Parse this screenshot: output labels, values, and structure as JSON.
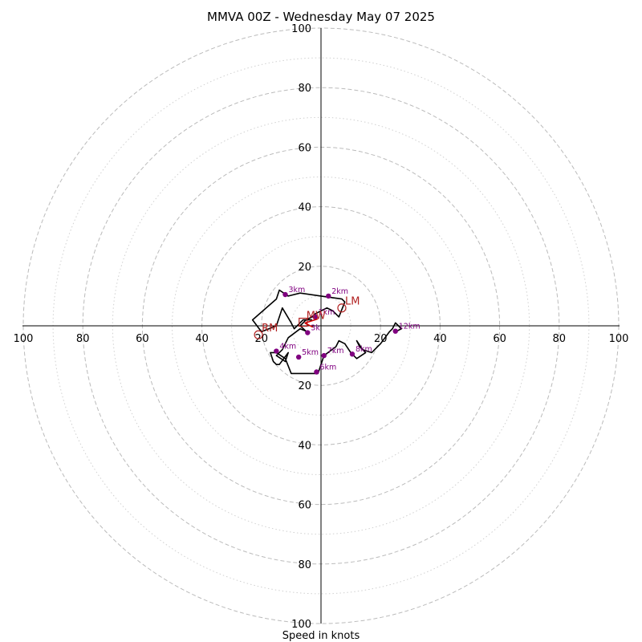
{
  "chart_data": {
    "type": "hodograph",
    "title": "MMVA 00Z - Wednesday May 07 2025",
    "xlabel": "Speed in knots",
    "units": "knots",
    "range": [
      -100,
      100
    ],
    "rings": {
      "major": [
        20,
        40,
        60,
        80,
        100
      ],
      "minor": [
        10,
        30,
        50,
        70,
        90
      ]
    },
    "tick_labels": {
      "x_left": [
        "100",
        "80",
        "60",
        "40",
        "20"
      ],
      "x_right": [
        "20",
        "40",
        "60",
        "80",
        "100"
      ],
      "y_top": [
        "100",
        "80",
        "60",
        "40",
        "20"
      ],
      "y_bottom": [
        "20",
        "40",
        "60",
        "80",
        "100"
      ]
    },
    "hodograph_trace": [
      [
        -3,
        2
      ],
      [
        -6,
        2
      ],
      [
        -9,
        -1
      ],
      [
        -10,
        1
      ],
      [
        -13,
        6
      ],
      [
        -15,
        0
      ],
      [
        -20,
        -2
      ],
      [
        -23,
        2
      ],
      [
        -15,
        9
      ],
      [
        -14,
        12
      ],
      [
        -11,
        10
      ],
      [
        -7,
        11
      ],
      [
        0,
        10
      ],
      [
        7,
        9
      ],
      [
        8,
        8
      ],
      [
        6,
        3
      ],
      [
        4,
        5
      ],
      [
        2,
        6
      ],
      [
        0,
        5
      ],
      [
        -2,
        4
      ],
      [
        -3,
        3
      ],
      [
        -5,
        2
      ],
      [
        -7,
        0
      ],
      [
        -4.5,
        -2.3
      ],
      [
        -4.5,
        -2
      ],
      [
        -7,
        -1
      ],
      [
        -11,
        -4
      ],
      [
        -13,
        -8
      ],
      [
        -15,
        -10
      ],
      [
        -12,
        -12
      ],
      [
        -11,
        -9
      ],
      [
        -14,
        -13
      ],
      [
        -15,
        -13
      ],
      [
        -16,
        -12
      ],
      [
        -17,
        -9
      ],
      [
        -15,
        -9
      ],
      [
        -12,
        -11
      ],
      [
        -10,
        -16
      ],
      [
        -1,
        -16
      ],
      [
        0,
        -13
      ],
      [
        1,
        -10
      ],
      [
        5,
        -7
      ],
      [
        6,
        -5
      ],
      [
        8,
        -6
      ],
      [
        10,
        -9
      ],
      [
        12,
        -11
      ],
      [
        15,
        -9
      ],
      [
        13,
        -7
      ],
      [
        12,
        -5
      ],
      [
        14,
        -8
      ],
      [
        17,
        -9
      ],
      [
        20,
        -6
      ],
      [
        23,
        -2
      ],
      [
        24,
        -1
      ],
      [
        25,
        1
      ],
      [
        26,
        0
      ],
      [
        27,
        -1
      ],
      [
        25,
        -2
      ]
    ],
    "height_markers": [
      {
        "label": "1km",
        "u": -2,
        "v": 3
      },
      {
        "label": "2km",
        "u": 2.5,
        "v": 10
      },
      {
        "label": "3km",
        "u": -12,
        "v": 10.5
      },
      {
        "label": "3k",
        "u": -4.5,
        "v": -2.3
      },
      {
        "label": "4km",
        "u": -15,
        "v": -8.5
      },
      {
        "label": "5km",
        "u": -7.5,
        "v": -10.5
      },
      {
        "label": "6km",
        "u": -1.5,
        "v": -15.5
      },
      {
        "label": "7km",
        "u": 1,
        "v": -10
      },
      {
        "label": "8km",
        "u": 10.5,
        "v": -9.5
      },
      {
        "label": "12km",
        "u": 25,
        "v": -1.8
      }
    ],
    "storm_motion": [
      {
        "label": "MW",
        "marker": "square",
        "u": -6,
        "v": 1.2
      },
      {
        "label": "LM",
        "marker": "circle",
        "u": 7,
        "v": 6
      },
      {
        "label": "RM",
        "marker": "circle",
        "u": -21,
        "v": -3
      }
    ],
    "colors": {
      "trace": "#000000",
      "height_marker": "#800080",
      "storm_motion": "#b22222",
      "grid": "#bbbbbb",
      "arrow": "#cc0000"
    }
  }
}
